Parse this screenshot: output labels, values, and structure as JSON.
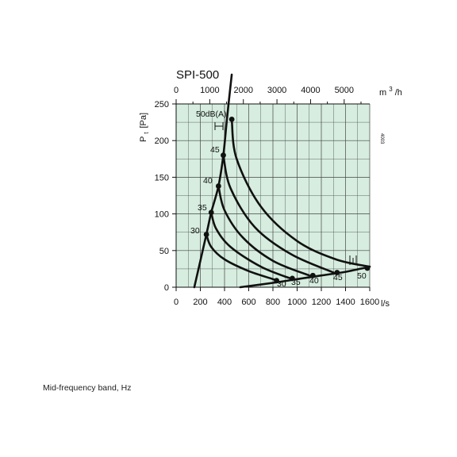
{
  "footer_note": "Mid-frequency band, Hz",
  "chart_data": {
    "type": "line",
    "title": "SPI-500",
    "side_code": "4003",
    "ylabel_main": "P",
    "ylabel_sub": "t",
    "ylabel_unit": "[Pa]",
    "x_unit": "l/s",
    "top_unit_base": "m",
    "top_unit_exp": "3",
    "top_unit_suffix": "/h",
    "xlim": [
      0,
      1600
    ],
    "ylim": [
      0,
      250
    ],
    "x_ticks": [
      0,
      200,
      400,
      600,
      800,
      1000,
      1200,
      1400,
      1600
    ],
    "y_ticks": [
      0,
      50,
      100,
      150,
      200,
      250
    ],
    "top_ticks": [
      0,
      1000,
      2000,
      3000,
      4000,
      5000
    ],
    "grid": true,
    "background": "#d6eddf",
    "grid_color": "#444444",
    "curve_color": "#111111",
    "fan_curve": {
      "x": [
        150,
        250,
        290,
        350,
        390,
        420,
        460
      ],
      "y": [
        0,
        72,
        102,
        138,
        180,
        230,
        290
      ]
    },
    "system_curves": [
      {
        "name": "30",
        "x": [
          250,
          290,
          400,
          600,
          800,
          830
        ],
        "y": [
          72,
          55,
          38,
          22,
          11,
          9
        ]
      },
      {
        "name": "35",
        "x": [
          290,
          330,
          450,
          700,
          960
        ],
        "y": [
          102,
          80,
          55,
          28,
          11
        ]
      },
      {
        "name": "40",
        "x": [
          350,
          400,
          550,
          800,
          1100
        ],
        "y": [
          138,
          105,
          68,
          36,
          16
        ]
      },
      {
        "name": "45",
        "x": [
          390,
          450,
          650,
          950,
          1300
        ],
        "y": [
          180,
          135,
          82,
          45,
          20
        ]
      },
      {
        "name": "50dB(A)",
        "x": [
          460,
          500,
          700,
          1000,
          1320,
          1600
        ],
        "y": [
          228,
          175,
          110,
          63,
          38,
          28
        ]
      }
    ],
    "resistance_curve": {
      "x": [
        530,
        800,
        1000,
        1200,
        1400,
        1600
      ],
      "y": [
        0,
        6,
        11,
        16,
        21,
        28
      ]
    },
    "points": [
      {
        "x": 250,
        "y": 72
      },
      {
        "x": 290,
        "y": 102
      },
      {
        "x": 350,
        "y": 138
      },
      {
        "x": 390,
        "y": 180
      },
      {
        "x": 460,
        "y": 229
      },
      {
        "x": 830,
        "y": 9
      },
      {
        "x": 960,
        "y": 12
      },
      {
        "x": 1130,
        "y": 16
      },
      {
        "x": 1330,
        "y": 20
      },
      {
        "x": 1580,
        "y": 26
      }
    ],
    "labels": {
      "left": [
        "30",
        "35",
        "40",
        "45",
        "50dB(A)"
      ],
      "bottom": [
        "30",
        "35",
        "40",
        "45",
        "50"
      ]
    }
  }
}
